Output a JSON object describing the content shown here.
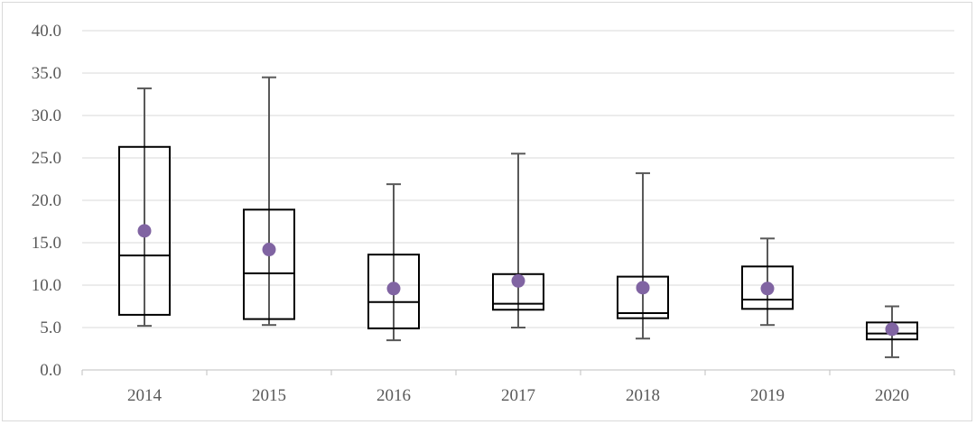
{
  "chart_data": {
    "type": "boxplot",
    "title": "",
    "xlabel": "",
    "ylabel": "",
    "ylim": [
      0,
      40
    ],
    "y_ticks": [
      "0.0",
      "5.0",
      "10.0",
      "15.0",
      "20.0",
      "25.0",
      "30.0",
      "35.0",
      "40.0"
    ],
    "grid": "horizontal",
    "legend": "none",
    "categories": [
      "2014",
      "2015",
      "2016",
      "2017",
      "2018",
      "2019",
      "2020"
    ],
    "boxes": [
      {
        "min": 5.2,
        "q1": 6.5,
        "median": 13.5,
        "q3": 26.3,
        "max": 33.2,
        "mean": 16.4
      },
      {
        "min": 5.3,
        "q1": 6.0,
        "median": 11.4,
        "q3": 18.9,
        "max": 34.5,
        "mean": 14.2
      },
      {
        "min": 3.5,
        "q1": 4.9,
        "median": 8.0,
        "q3": 13.6,
        "max": 21.9,
        "mean": 9.6
      },
      {
        "min": 5.0,
        "q1": 7.1,
        "median": 7.8,
        "q3": 11.3,
        "max": 25.5,
        "mean": 10.5
      },
      {
        "min": 3.7,
        "q1": 6.1,
        "median": 6.7,
        "q3": 11.0,
        "max": 23.2,
        "mean": 9.7
      },
      {
        "min": 5.3,
        "q1": 7.2,
        "median": 8.3,
        "q3": 12.2,
        "max": 15.5,
        "mean": 9.6
      },
      {
        "min": 1.5,
        "q1": 3.6,
        "median": 4.3,
        "q3": 5.6,
        "max": 7.5,
        "mean": 4.8
      }
    ],
    "colors": {
      "mean_marker": "#8064a2",
      "box_stroke": "#000000",
      "whisker": "#595959",
      "grid": "#d9d9d9"
    }
  }
}
